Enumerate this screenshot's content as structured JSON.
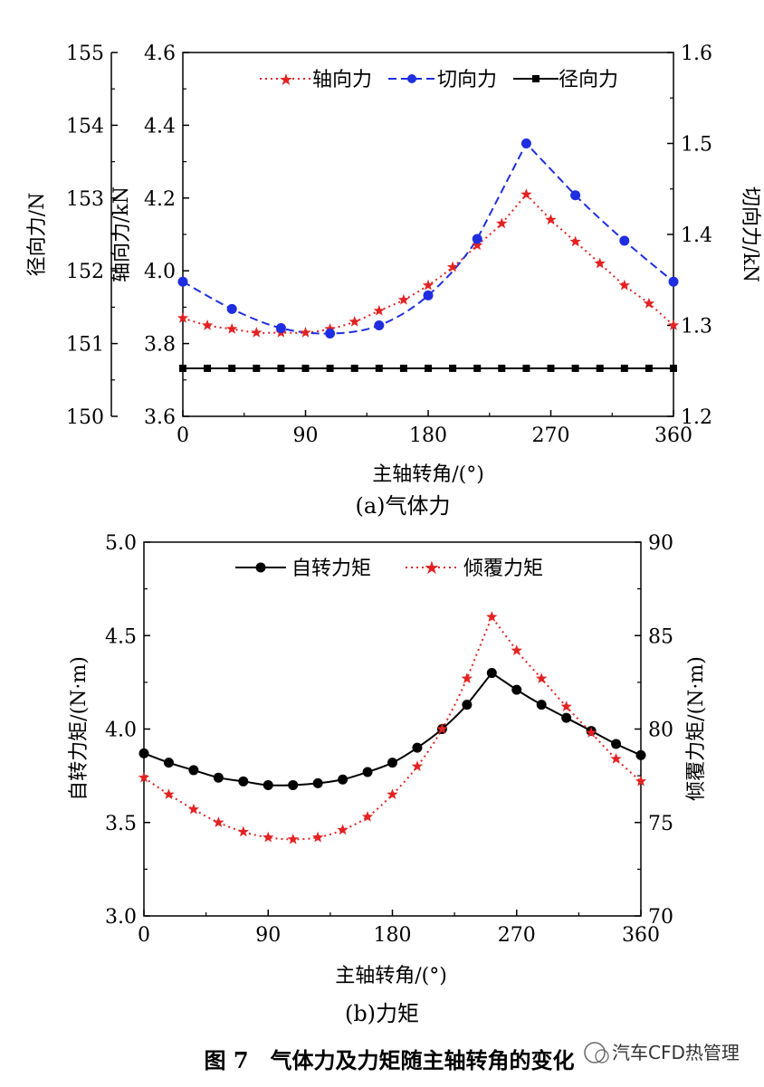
{
  "figure_title": "图 7　气体力及力矩随主轴转角的变化",
  "watermark": "汽车CFD热管理",
  "chart_data": [
    {
      "type": "line",
      "caption": "(a)气体力",
      "xlabel": "主轴转角/(°)",
      "xlim": [
        0,
        360
      ],
      "xticks": [
        "0",
        "90",
        "180",
        "270",
        "360"
      ],
      "axes": {
        "left_outer": {
          "label": "径向力/N",
          "lim": [
            150,
            155
          ],
          "ticks": [
            "150",
            "151",
            "152",
            "153",
            "154",
            "155"
          ]
        },
        "left_inner": {
          "label": "轴向力/kN",
          "lim": [
            3.6,
            4.6
          ],
          "ticks": [
            "3.6",
            "3.8",
            "4.0",
            "4.2",
            "4.4",
            "4.6"
          ]
        },
        "right": {
          "label": "切向力/kN",
          "lim": [
            1.2,
            1.6
          ],
          "ticks": [
            "1.2",
            "1.3",
            "1.4",
            "1.5",
            "1.6"
          ]
        }
      },
      "legend": [
        "轴向力",
        "切向力",
        "径向力"
      ],
      "series": [
        {
          "name": "轴向力",
          "axis": "left_inner",
          "color": "#e32222",
          "style": "dotted",
          "marker": "star",
          "x": [
            0,
            18,
            36,
            54,
            72,
            90,
            108,
            126,
            144,
            162,
            180,
            198,
            216,
            234,
            252,
            270,
            288,
            306,
            324,
            342,
            360
          ],
          "values": [
            3.87,
            3.85,
            3.84,
            3.83,
            3.83,
            3.83,
            3.84,
            3.86,
            3.89,
            3.92,
            3.96,
            4.01,
            4.07,
            4.13,
            4.21,
            4.14,
            4.08,
            4.02,
            3.96,
            3.91,
            3.85
          ]
        },
        {
          "name": "切向力",
          "axis": "right",
          "color": "#1f2ee0",
          "style": "dashed",
          "marker": "circle",
          "x": [
            0,
            36,
            72,
            108,
            144,
            180,
            216,
            252,
            288,
            324,
            360
          ],
          "values": [
            1.348,
            1.318,
            1.297,
            1.291,
            1.3,
            1.333,
            1.395,
            1.5,
            1.443,
            1.393,
            1.348
          ]
        },
        {
          "name": "径向力",
          "axis": "left_outer",
          "color": "#000000",
          "style": "solid",
          "marker": "square",
          "x": [
            0,
            18,
            36,
            54,
            72,
            90,
            108,
            126,
            144,
            162,
            180,
            198,
            216,
            234,
            252,
            270,
            288,
            306,
            324,
            342,
            360
          ],
          "values": [
            150.66,
            150.66,
            150.66,
            150.66,
            150.66,
            150.66,
            150.66,
            150.66,
            150.66,
            150.66,
            150.66,
            150.66,
            150.66,
            150.66,
            150.66,
            150.66,
            150.66,
            150.66,
            150.66,
            150.66,
            150.66
          ]
        }
      ]
    },
    {
      "type": "line",
      "caption": "(b)力矩",
      "xlabel": "主轴转角/(°)",
      "xlim": [
        0,
        360
      ],
      "xticks": [
        "0",
        "90",
        "180",
        "270",
        "360"
      ],
      "axes": {
        "left": {
          "label": "自转力矩/(N·m)",
          "lim": [
            3.0,
            5.0
          ],
          "ticks": [
            "3.0",
            "3.5",
            "4.0",
            "4.5",
            "5.0"
          ]
        },
        "right": {
          "label": "倾覆力矩/(N·m)",
          "lim": [
            70,
            90
          ],
          "ticks": [
            "70",
            "75",
            "80",
            "85",
            "90"
          ]
        }
      },
      "legend": [
        "自转力矩",
        "倾覆力矩"
      ],
      "series": [
        {
          "name": "自转力矩",
          "axis": "left",
          "color": "#000000",
          "style": "solid",
          "marker": "circle",
          "x": [
            0,
            18,
            36,
            54,
            72,
            90,
            108,
            126,
            144,
            162,
            180,
            198,
            216,
            234,
            252,
            270,
            288,
            306,
            324,
            342,
            360
          ],
          "values": [
            3.87,
            3.82,
            3.78,
            3.74,
            3.72,
            3.7,
            3.7,
            3.71,
            3.73,
            3.77,
            3.82,
            3.9,
            4.0,
            4.13,
            4.3,
            4.21,
            4.13,
            4.06,
            3.99,
            3.92,
            3.86
          ]
        },
        {
          "name": "倾覆力矩",
          "axis": "right",
          "color": "#e32222",
          "style": "dotted",
          "marker": "star",
          "x": [
            0,
            18,
            36,
            54,
            72,
            90,
            108,
            126,
            144,
            162,
            180,
            198,
            216,
            234,
            252,
            270,
            288,
            306,
            324,
            342,
            360
          ],
          "values": [
            77.4,
            76.5,
            75.7,
            75.0,
            74.5,
            74.2,
            74.1,
            74.2,
            74.6,
            75.3,
            76.5,
            78.0,
            80.0,
            82.7,
            86.0,
            84.2,
            82.7,
            81.2,
            79.8,
            78.4,
            77.2
          ]
        }
      ]
    }
  ]
}
